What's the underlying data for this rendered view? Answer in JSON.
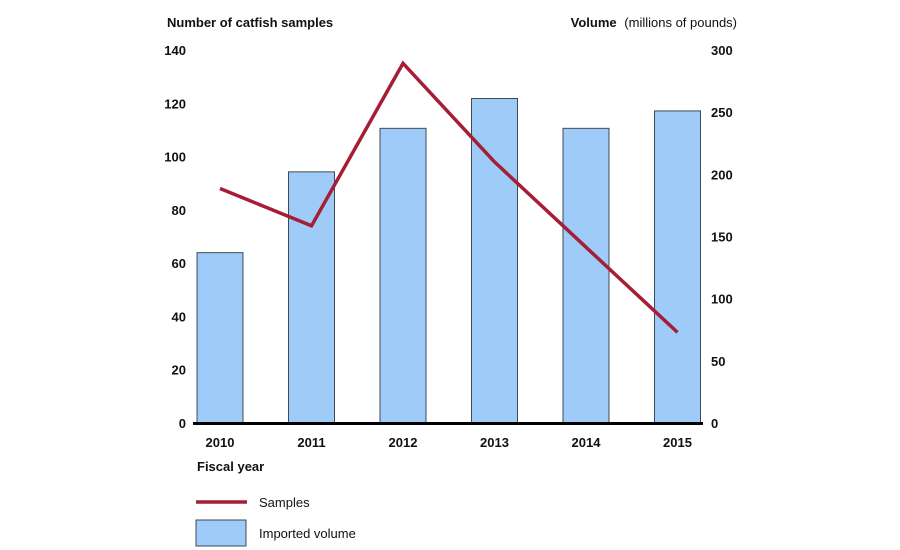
{
  "chart_data": {
    "type": "bar+line",
    "left_axis": {
      "title_bold": "Number of catfish samples",
      "ylim": [
        0,
        140
      ],
      "ticks": [
        "140",
        "120",
        "100",
        "80",
        "60",
        "40",
        "20",
        "0"
      ]
    },
    "right_axis": {
      "title_bold": "Volume",
      "title_rest": "(millions of pounds)",
      "ylim": [
        0,
        300
      ],
      "ticks": [
        "300",
        "250",
        "200",
        "150",
        "100",
        "50",
        "0"
      ]
    },
    "xlabel": "Fiscal year",
    "categories": [
      "2010",
      "2011",
      "2012",
      "2013",
      "2014",
      "2015"
    ],
    "series": [
      {
        "name": "Samples",
        "type": "line",
        "axis": "left",
        "values": [
          88,
          74,
          135,
          98,
          66,
          34
        ]
      },
      {
        "name": "Imported volume",
        "type": "bar",
        "axis": "right",
        "values": [
          137,
          202,
          237,
          261,
          237,
          251
        ]
      }
    ],
    "legend": [
      "Samples",
      "Imported volume"
    ],
    "legend_position": "bottom-left",
    "grid": false,
    "colors": {
      "bar_fill": "#9ecbf7",
      "bar_stroke": "#3d4a57",
      "line": "#a61e35",
      "baseline": "#000000"
    }
  }
}
